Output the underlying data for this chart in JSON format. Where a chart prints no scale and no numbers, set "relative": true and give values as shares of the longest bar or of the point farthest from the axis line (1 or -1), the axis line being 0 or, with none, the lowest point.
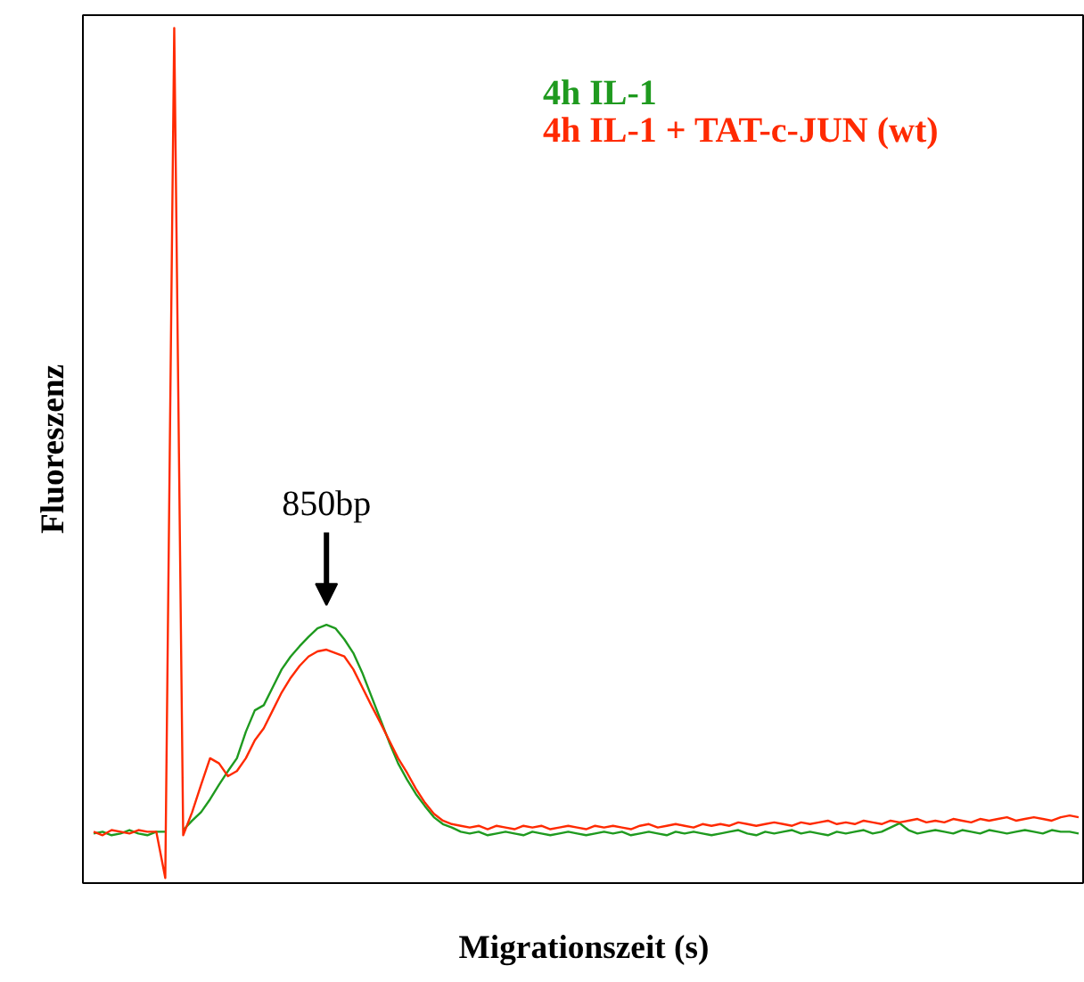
{
  "chart_data": {
    "type": "line",
    "relative": true,
    "xlabel": "Migrationszeit (s)",
    "ylabel": "Fluoreszenz",
    "annotations": [
      "850bp"
    ],
    "legend": "top right",
    "grid": false,
    "marker": "none",
    "line_style": "solid",
    "categories": [
      null,
      null,
      null,
      null,
      null,
      null,
      null,
      null,
      null,
      null,
      null,
      null,
      null,
      null,
      null,
      null,
      null,
      null,
      null,
      null,
      null,
      null,
      null,
      null,
      null,
      null,
      null,
      null,
      null,
      null,
      null,
      null,
      null,
      null,
      null,
      null,
      null,
      null,
      null,
      null,
      null,
      null,
      null,
      null,
      null,
      null,
      null,
      null,
      null,
      null,
      null,
      null,
      null,
      null,
      null,
      null,
      null,
      null,
      null,
      null,
      null,
      null,
      null,
      null,
      null,
      null,
      null,
      null,
      null,
      null,
      null,
      null,
      null,
      null,
      null,
      null,
      null,
      null,
      null,
      null,
      null,
      null,
      null,
      null,
      null,
      null,
      null,
      null,
      null,
      null,
      null,
      null,
      null,
      null,
      null,
      null,
      null,
      null,
      null,
      null,
      null,
      null,
      null,
      null,
      null,
      null,
      null,
      null,
      null,
      null,
      null
    ],
    "series": [
      {
        "name": "4h IL-1",
        "color": "#1f9a1f",
        "values": [
          0.058,
          0.06,
          0.056,
          0.058,
          0.062,
          0.058,
          0.056,
          0.06,
          0.06,
          null,
          0.062,
          0.073,
          0.083,
          0.098,
          0.115,
          0.131,
          0.146,
          0.177,
          0.202,
          0.208,
          0.229,
          0.25,
          0.265,
          0.277,
          0.288,
          0.298,
          0.302,
          0.298,
          0.285,
          0.269,
          0.246,
          0.219,
          0.192,
          0.165,
          0.14,
          0.121,
          0.104,
          0.09,
          0.077,
          0.069,
          0.065,
          0.06,
          0.058,
          0.06,
          0.056,
          0.058,
          0.06,
          0.058,
          0.056,
          0.06,
          0.058,
          0.056,
          0.058,
          0.06,
          0.058,
          0.056,
          0.058,
          0.06,
          0.058,
          0.06,
          0.056,
          0.058,
          0.06,
          0.058,
          0.056,
          0.06,
          0.058,
          0.06,
          0.058,
          0.056,
          0.058,
          0.06,
          0.062,
          0.058,
          0.056,
          0.06,
          0.058,
          0.06,
          0.062,
          0.058,
          0.06,
          0.058,
          0.056,
          0.06,
          0.058,
          0.06,
          0.062,
          0.058,
          0.06,
          0.065,
          0.07,
          0.062,
          0.058,
          0.06,
          0.062,
          0.06,
          0.058,
          0.062,
          0.06,
          0.058,
          0.062,
          0.06,
          0.058,
          0.06,
          0.062,
          0.06,
          0.058,
          0.062,
          0.06,
          0.06,
          0.058
        ]
      },
      {
        "name": "4h IL-1 + TAT-c-JUN (wt)",
        "color": "#ff2a00",
        "values": [
          0.06,
          0.056,
          0.062,
          0.06,
          0.058,
          0.062,
          0.06,
          0.06,
          0.006,
          1.0,
          0.056,
          0.083,
          0.115,
          0.146,
          0.14,
          0.125,
          0.131,
          0.146,
          0.167,
          0.181,
          0.202,
          0.223,
          0.24,
          0.254,
          0.265,
          0.271,
          0.273,
          0.269,
          0.265,
          0.25,
          0.229,
          0.208,
          0.188,
          0.167,
          0.146,
          0.129,
          0.11,
          0.094,
          0.081,
          0.073,
          0.069,
          0.067,
          0.065,
          0.067,
          0.063,
          0.067,
          0.065,
          0.063,
          0.067,
          0.065,
          0.067,
          0.063,
          0.065,
          0.067,
          0.065,
          0.063,
          0.067,
          0.065,
          0.067,
          0.065,
          0.063,
          0.067,
          0.069,
          0.065,
          0.067,
          0.069,
          0.067,
          0.065,
          0.069,
          0.067,
          0.069,
          0.067,
          0.071,
          0.069,
          0.067,
          0.069,
          0.071,
          0.069,
          0.067,
          0.071,
          0.069,
          0.071,
          0.073,
          0.069,
          0.071,
          0.069,
          0.073,
          0.071,
          0.069,
          0.073,
          0.071,
          0.073,
          0.075,
          0.071,
          0.073,
          0.071,
          0.075,
          0.073,
          0.071,
          0.075,
          0.073,
          0.075,
          0.077,
          0.073,
          0.075,
          0.077,
          0.075,
          0.073,
          0.077,
          0.079,
          0.077
        ]
      }
    ]
  }
}
